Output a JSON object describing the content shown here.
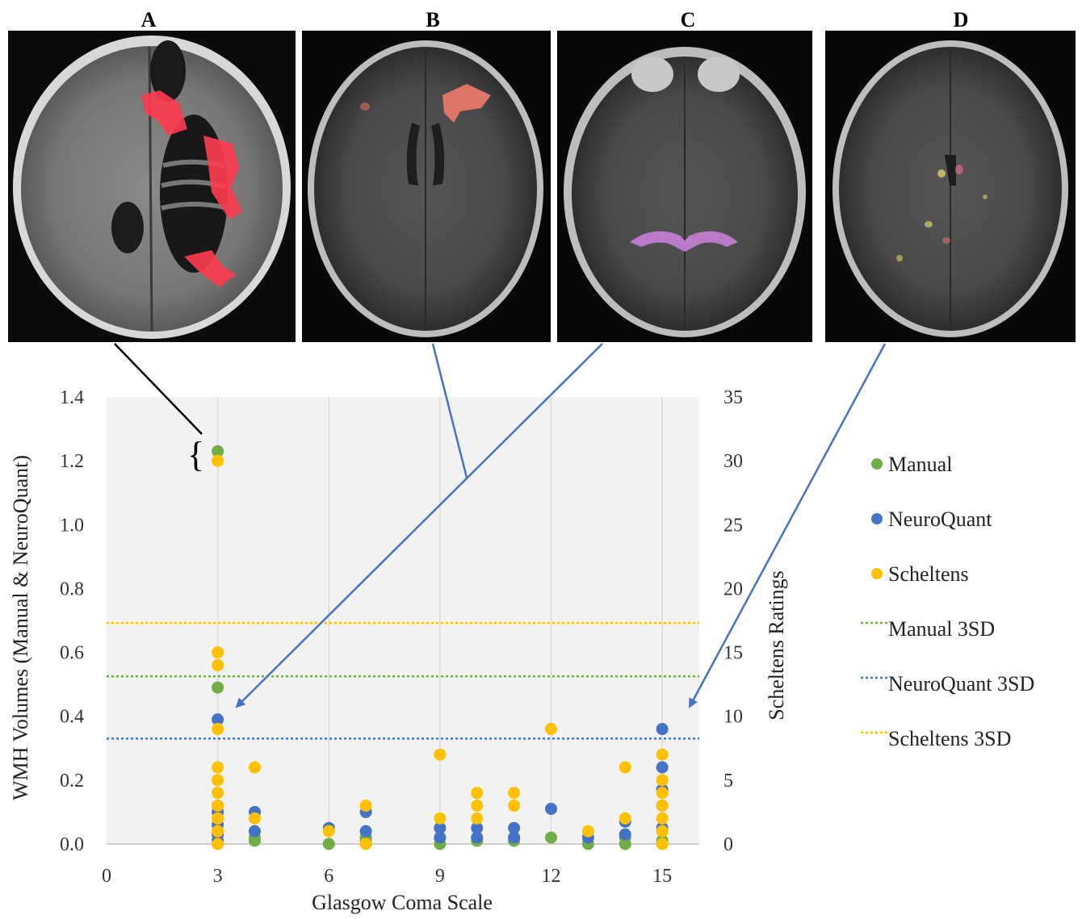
{
  "panels": [
    "A",
    "B",
    "C",
    "D"
  ],
  "chart_data": {
    "type": "scatter",
    "title": "",
    "xlabel": "Glasgow Coma Scale",
    "ylabel": "WMH Volumes (Manual & NeuroQuant)",
    "y2label": "Scheltens Ratings",
    "xlim": [
      0,
      16
    ],
    "xticks": [
      0,
      3,
      6,
      9,
      12,
      15
    ],
    "ylim": [
      0,
      1.4
    ],
    "yticks": [
      "0.0",
      "0.2",
      "0.4",
      "0.6",
      "0.8",
      "1.0",
      "1.2",
      "1.4"
    ],
    "y2lim": [
      0,
      35
    ],
    "y2ticks": [
      "0",
      "5",
      "10",
      "15",
      "20",
      "25",
      "30",
      "35"
    ],
    "grid": "vertical",
    "legend": "right",
    "colors": {
      "manual": "#70ad47",
      "neuroquant": "#4472c4",
      "scheltens": "#ffc000"
    },
    "series": [
      {
        "name": "Manual",
        "axis": "left",
        "x": [
          3,
          3,
          3,
          3,
          4,
          4,
          6,
          7,
          7,
          9,
          9,
          10,
          10,
          11,
          11,
          12,
          13,
          14,
          14,
          15,
          15
        ],
        "y": [
          1.23,
          0.49,
          0.01,
          0.03,
          0.01,
          0.02,
          0.0,
          0.02,
          0.01,
          0.0,
          0.02,
          0.01,
          0.02,
          0.01,
          0.02,
          0.02,
          0.0,
          0.0,
          0.02,
          0.0,
          0.01
        ]
      },
      {
        "name": "NeuroQuant",
        "axis": "left",
        "x": [
          3,
          3,
          3,
          3,
          3,
          3,
          4,
          4,
          6,
          7,
          7,
          9,
          9,
          10,
          10,
          11,
          11,
          12,
          13,
          14,
          14,
          15,
          15,
          15,
          15,
          15
        ],
        "y": [
          0.39,
          0.12,
          0.1,
          0.06,
          0.03,
          0.01,
          0.1,
          0.04,
          0.05,
          0.1,
          0.04,
          0.05,
          0.02,
          0.05,
          0.02,
          0.05,
          0.02,
          0.11,
          0.02,
          0.07,
          0.03,
          0.36,
          0.24,
          0.17,
          0.12,
          0.05
        ]
      },
      {
        "name": "Scheltens",
        "axis": "right",
        "x": [
          3,
          3,
          3,
          3,
          3,
          3,
          3,
          3,
          3,
          3,
          3,
          3,
          3,
          4,
          4,
          6,
          7,
          7,
          9,
          9,
          10,
          10,
          10,
          11,
          11,
          12,
          13,
          14,
          14,
          15,
          15,
          15,
          15,
          15,
          15,
          15,
          15
        ],
        "y": [
          30,
          15,
          14,
          9,
          6,
          5,
          4,
          3,
          2,
          1,
          0,
          1,
          2,
          6,
          2,
          1,
          3,
          0,
          7,
          2,
          4,
          3,
          2,
          4,
          3,
          9,
          1,
          6,
          2,
          7,
          5,
          4,
          3,
          2,
          1,
          0,
          5
        ]
      }
    ],
    "reference_lines": [
      {
        "name": "Manual 3SD",
        "axis": "left",
        "y": 0.525
      },
      {
        "name": "NeuroQuant 3SD",
        "axis": "left",
        "y": 0.33
      },
      {
        "name": "Scheltens 3SD",
        "axis": "right",
        "y": 17.3
      }
    ]
  }
}
